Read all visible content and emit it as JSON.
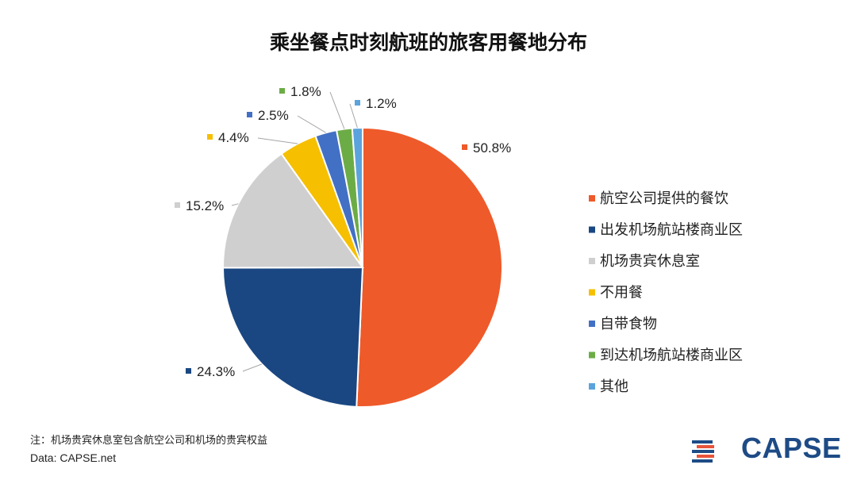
{
  "chart_data": {
    "type": "pie",
    "title": "乘坐餐点时刻航班的旅客用餐地分布",
    "slices": [
      {
        "label": "航空公司提供的餐饮",
        "value": 50.8,
        "display": "50.8%",
        "color": "#ee5a2a"
      },
      {
        "label": "出发机场航站楼商业区",
        "value": 24.3,
        "display": "24.3%",
        "color": "#1a4782"
      },
      {
        "label": "机场贵宾休息室",
        "value": 15.2,
        "display": "15.2%",
        "color": "#cfcfcf"
      },
      {
        "label": "不用餐",
        "value": 4.4,
        "display": "4.4%",
        "color": "#f6bf00"
      },
      {
        "label": "自带食物",
        "value": 2.5,
        "display": "2.5%",
        "color": "#4270c4"
      },
      {
        "label": "到达机场航站楼商业区",
        "value": 1.8,
        "display": "1.8%",
        "color": "#6cac46"
      },
      {
        "label": "其他",
        "value": 1.2,
        "display": "1.2%",
        "color": "#5ba3dd"
      }
    ],
    "legend_position": "right"
  },
  "footer": {
    "note": "注：机场贵宾休息室包含航空公司和机场的贵宾权益",
    "source": "Data: CAPSE.net"
  },
  "logo": {
    "text": "CAPSE",
    "color": "#1e4b86",
    "accent_color": "#e8543a"
  }
}
